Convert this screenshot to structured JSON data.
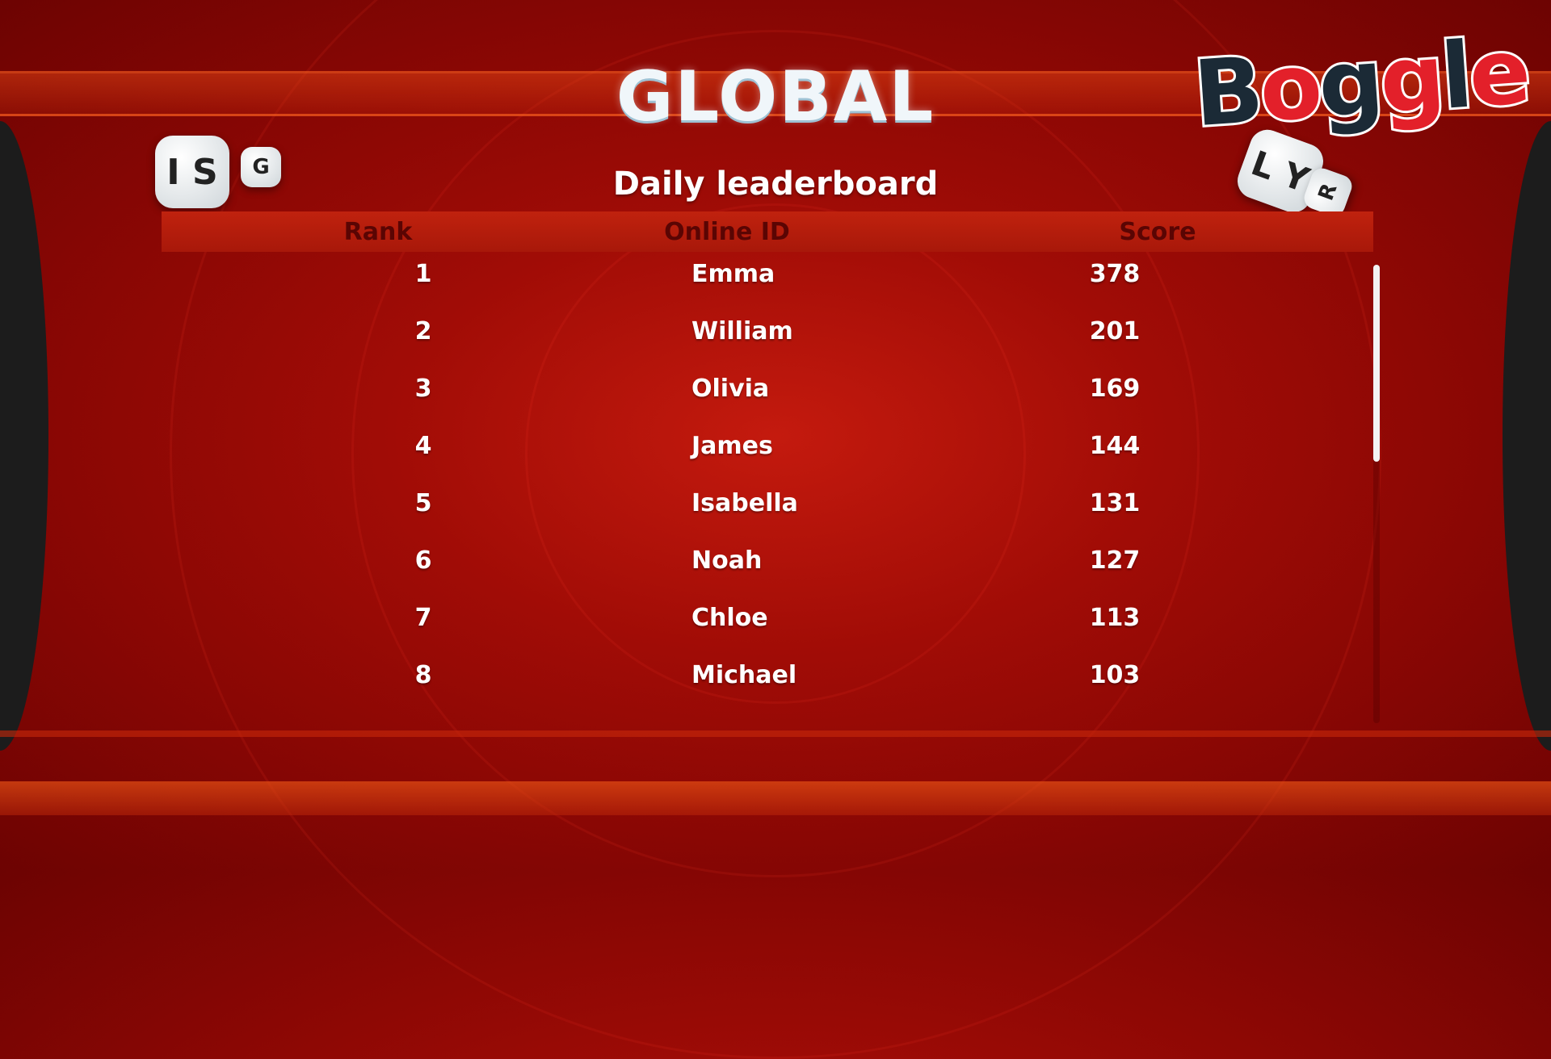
{
  "screen": {
    "title": "GLOBAL",
    "subtitle": "Daily leaderboard",
    "logo_text": "Boggle",
    "dice_letters_left": [
      "I",
      "S",
      "G"
    ],
    "dice_letters_right": [
      "L",
      "Y",
      "R"
    ]
  },
  "table": {
    "columns": [
      "Rank",
      "Online ID",
      "Score"
    ],
    "rows": [
      {
        "rank": "1",
        "id": "Emma",
        "score": "378"
      },
      {
        "rank": "2",
        "id": "William",
        "score": "201"
      },
      {
        "rank": "3",
        "id": "Olivia",
        "score": "169"
      },
      {
        "rank": "4",
        "id": "James",
        "score": "144"
      },
      {
        "rank": "5",
        "id": "Isabella",
        "score": "131"
      },
      {
        "rank": "6",
        "id": "Noah",
        "score": "127"
      },
      {
        "rank": "7",
        "id": "Chloe",
        "score": "113"
      },
      {
        "rank": "8",
        "id": "Michael",
        "score": "103"
      }
    ]
  },
  "colors": {
    "background": "#a10c06",
    "header_text": "#5a0503",
    "text": "#ffffff",
    "logo_dark": "#1b2a36",
    "logo_red": "#e3202a"
  }
}
